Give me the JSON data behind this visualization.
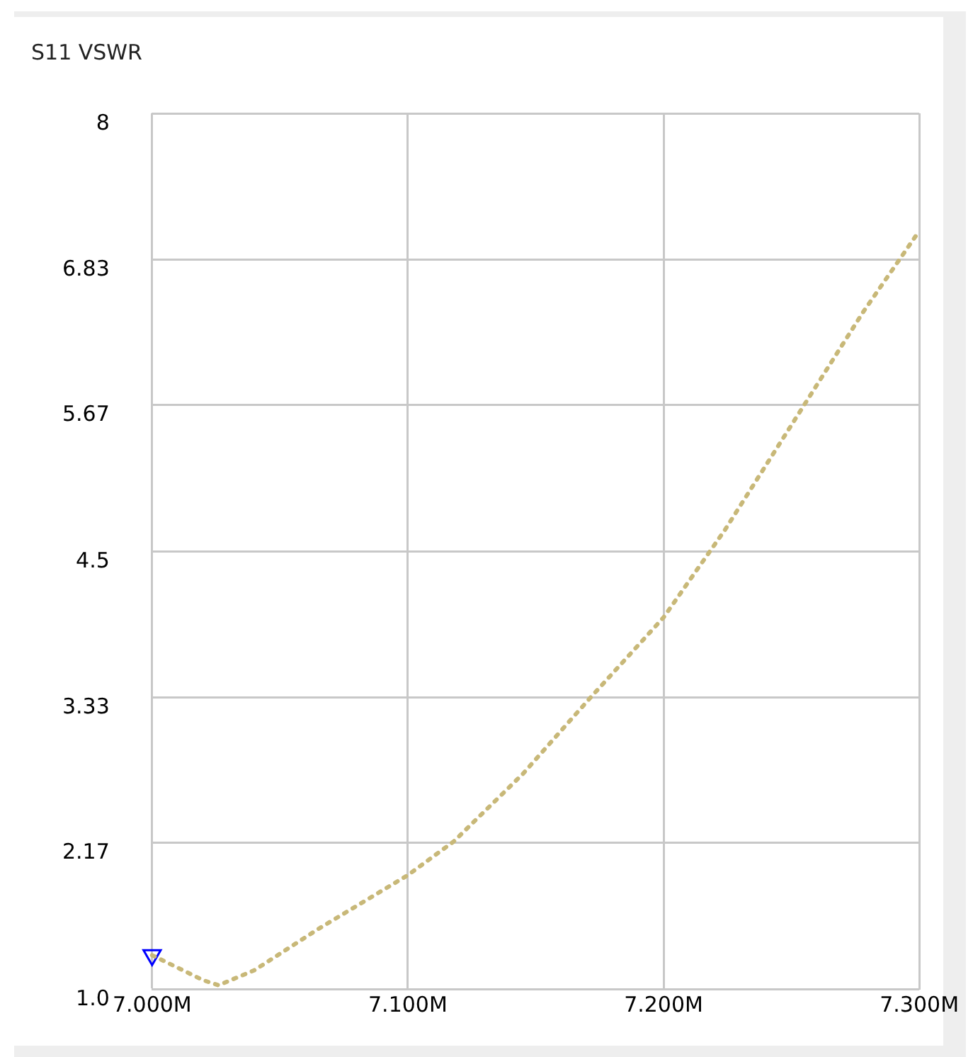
{
  "chart_data": {
    "type": "line",
    "title": "S11 VSWR",
    "x": [
      7.0,
      7.01,
      7.02,
      7.026,
      7.04,
      7.065,
      7.1,
      7.118,
      7.145,
      7.171,
      7.2,
      7.224,
      7.251,
      7.278,
      7.3
    ],
    "series": [
      {
        "color": "#c8b878",
        "values": [
          1.27,
          1.17,
          1.07,
          1.03,
          1.15,
          1.48,
          1.91,
          2.18,
          2.72,
          3.32,
          3.97,
          4.67,
          5.54,
          6.41,
          7.06
        ],
        "line_style": "dotted",
        "marker": "none"
      },
      {
        "type": "scatter",
        "x": [
          7.0
        ],
        "color": "#0000ff",
        "values": [
          1.27
        ],
        "marker": "triangle"
      }
    ],
    "xlim": [
      7.0,
      7.3
    ],
    "xticks": [
      {
        "value": 7.0,
        "label": "7.000M"
      },
      {
        "value": 7.1,
        "label": "7.100M"
      },
      {
        "value": 7.2,
        "label": "7.200M"
      },
      {
        "value": 7.3,
        "label": "7.300M"
      }
    ],
    "ylim": [
      1,
      8
    ],
    "yticks": [
      {
        "value": 1,
        "label": "1.0"
      },
      2.17,
      3.33,
      4.5,
      5.67,
      6.83,
      8
    ],
    "grid": true,
    "legend": false
  }
}
